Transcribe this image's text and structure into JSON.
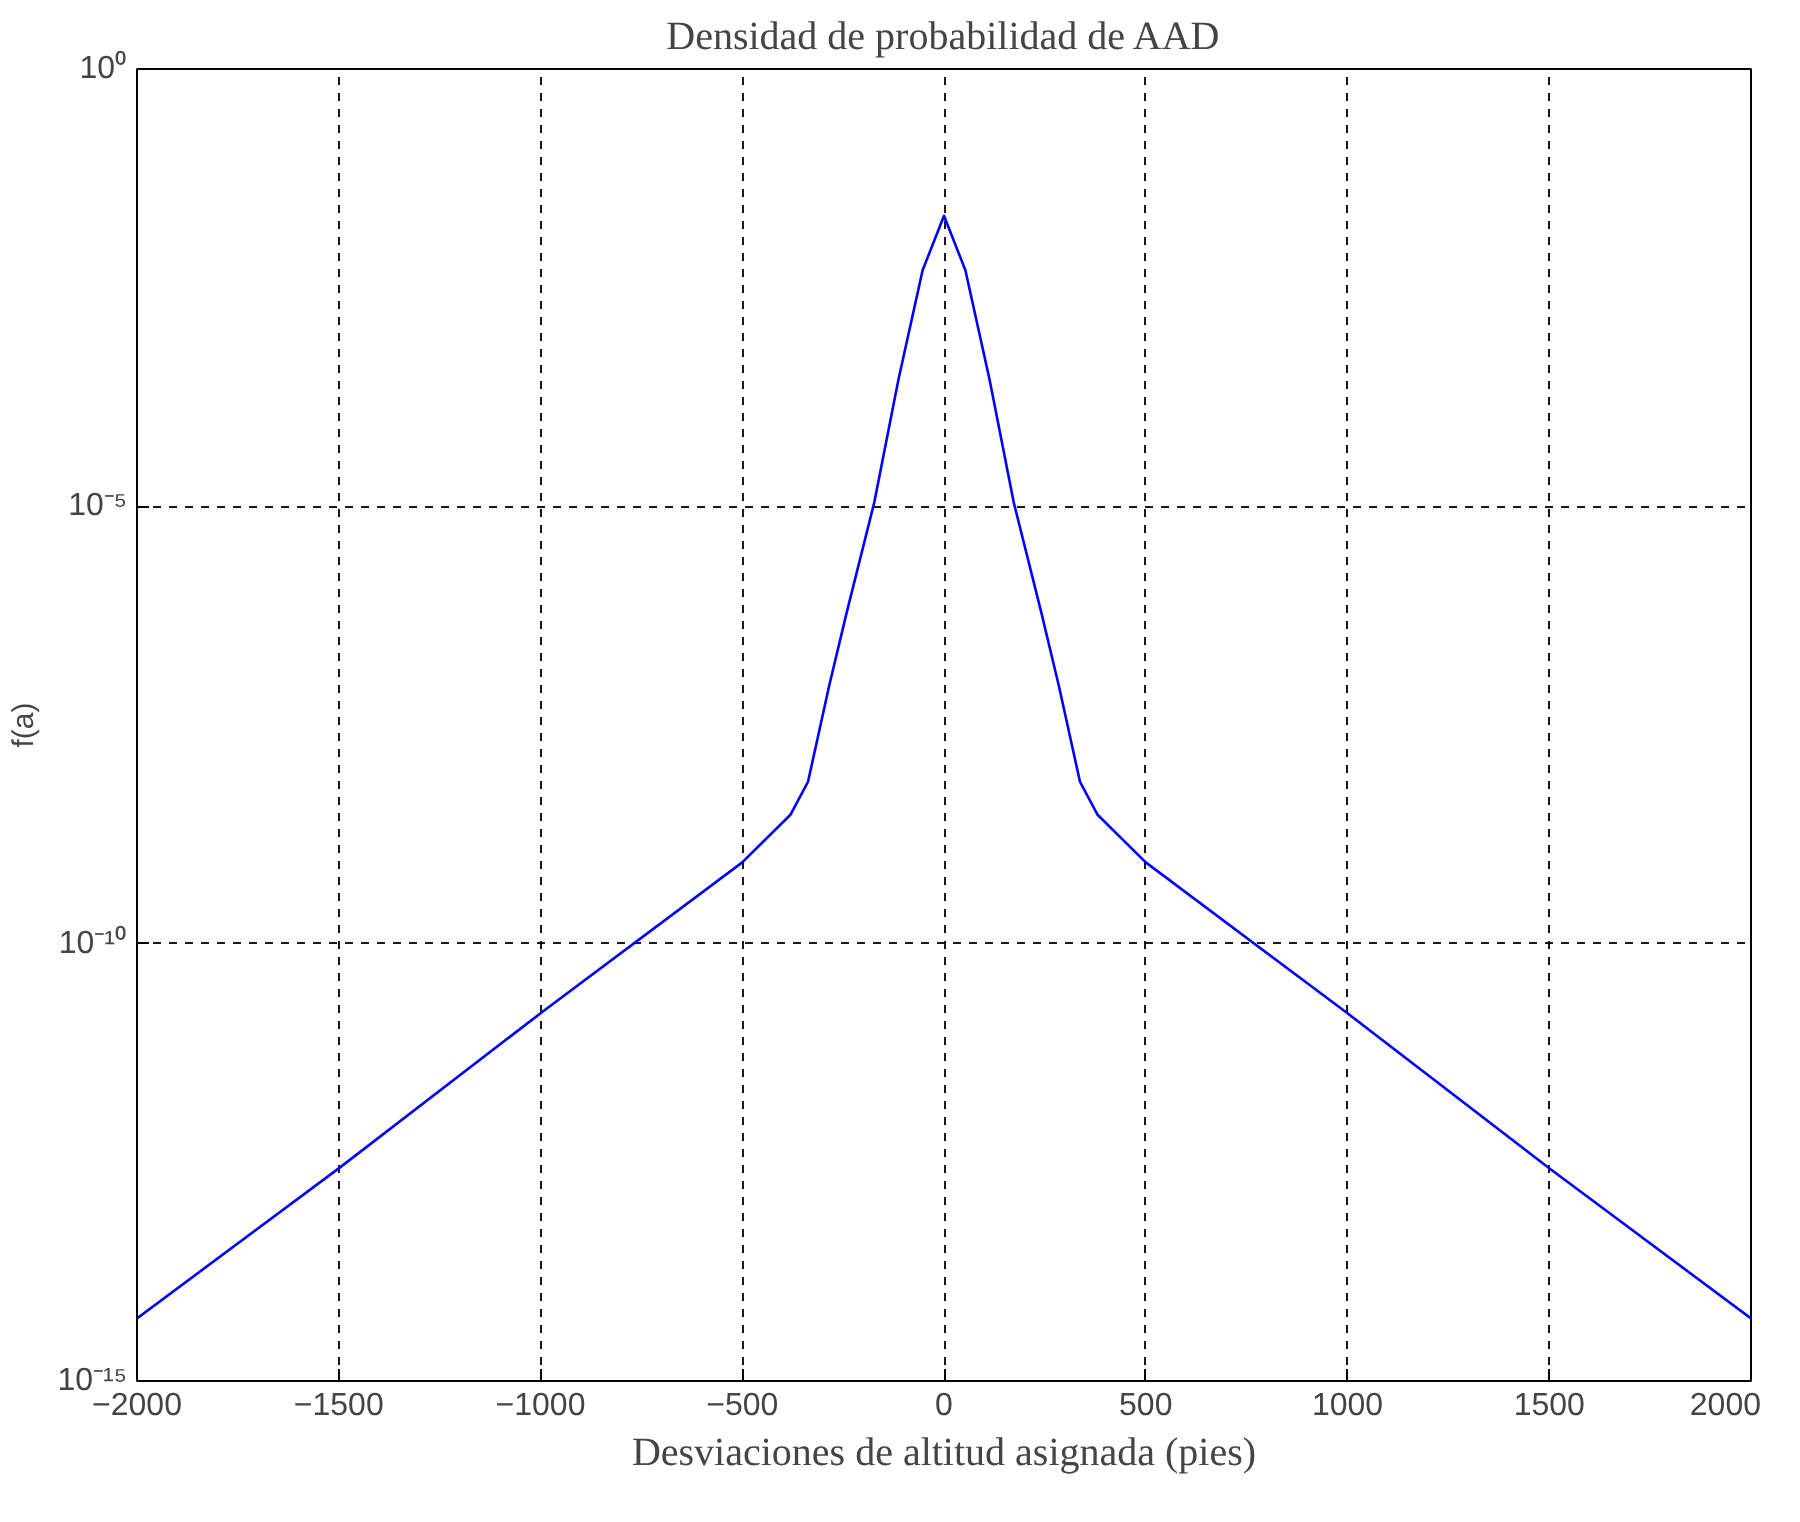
{
  "chart_data": {
    "type": "line",
    "title": "Densidad de probabilidad de AAD",
    "xlabel": "Desviaciones de altitud asignada (pies)",
    "ylabel": "f(a)",
    "x": [
      -2000,
      -1500,
      -1000,
      -500,
      -380,
      -337,
      -285,
      -242,
      -173,
      -113,
      -53,
      0,
      53,
      113,
      173,
      242,
      285,
      337,
      380,
      500,
      1000,
      1500,
      2000
    ],
    "series": [
      {
        "color": "#0000ff",
        "values": [
          5.2e-15,
          2.7e-13,
          1.6e-11,
          8.5e-10,
          3e-09,
          7.1e-09,
          8.7e-08,
          5.9e-07,
          1.1e-05,
          0.00028,
          0.005,
          0.021,
          0.005,
          0.00028,
          1.1e-05,
          5.9e-07,
          8.7e-08,
          7.1e-09,
          3e-09,
          8.5e-10,
          1.6e-11,
          2.7e-13,
          5.2e-15
        ]
      }
    ],
    "log": "y",
    "xlim": [
      -2000,
      2000
    ],
    "ylim": [
      1e-15,
      1
    ],
    "xticks": [
      -2000,
      -1500,
      -1000,
      -500,
      0,
      500,
      1000,
      1500,
      2000
    ],
    "yticks": [
      {
        "value": 1e-15,
        "label": "10⁻¹⁵"
      },
      {
        "value": 1e-10,
        "label": "10⁻¹⁰"
      },
      {
        "value": 1e-05,
        "label": "10⁻⁵"
      },
      {
        "value": 1,
        "label": "10⁰"
      }
    ],
    "grid": true,
    "line_style": "solid"
  }
}
